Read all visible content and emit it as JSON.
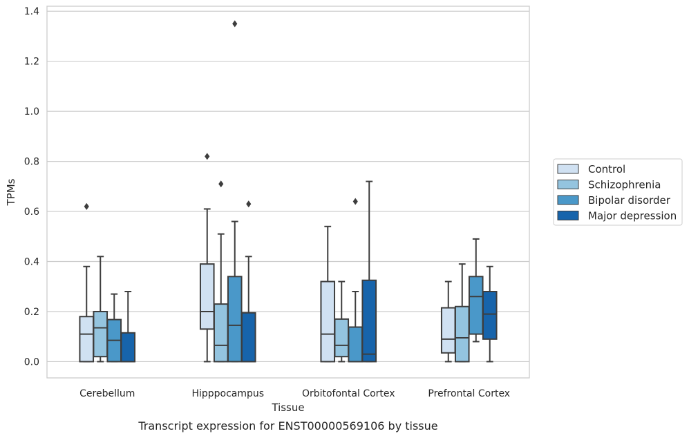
{
  "chart_data": {
    "type": "box",
    "xlabel": "Tissue",
    "ylabel": "TPMs",
    "caption": "Transcript expression for ENST00000569106 by tissue",
    "ylim": [
      -0.065,
      1.42
    ],
    "yticks": [
      "0.0",
      "0.2",
      "0.4",
      "0.6",
      "0.8",
      "1.0",
      "1.2",
      "1.4"
    ],
    "ytick_values": [
      0.0,
      0.2,
      0.4,
      0.6,
      0.8,
      1.0,
      1.2,
      1.4
    ],
    "grid": "horizontal",
    "legend_position": "right",
    "categories": [
      "Cerebellum",
      "Hipppocampus",
      "Orbitofontal Cortex",
      "Prefrontal Cortex"
    ],
    "series": [
      {
        "name": "Control",
        "color": "#d0e1f2",
        "boxes": [
          {
            "whislo": 0.0,
            "q1": 0.0,
            "med": 0.11,
            "q3": 0.18,
            "whishi": 0.38,
            "fliers": [
              0.62
            ]
          },
          {
            "whislo": 0.0,
            "q1": 0.13,
            "med": 0.2,
            "q3": 0.39,
            "whishi": 0.61,
            "fliers": [
              0.82
            ]
          },
          {
            "whislo": 0.0,
            "q1": 0.0,
            "med": 0.11,
            "q3": 0.32,
            "whishi": 0.54,
            "fliers": []
          },
          {
            "whislo": 0.0,
            "q1": 0.035,
            "med": 0.09,
            "q3": 0.215,
            "whishi": 0.32,
            "fliers": []
          }
        ]
      },
      {
        "name": "Schizophrenia",
        "color": "#94c4df",
        "boxes": [
          {
            "whislo": 0.0,
            "q1": 0.02,
            "med": 0.135,
            "q3": 0.2,
            "whishi": 0.42,
            "fliers": []
          },
          {
            "whislo": 0.0,
            "q1": 0.0,
            "med": 0.065,
            "q3": 0.23,
            "whishi": 0.51,
            "fliers": [
              0.71
            ]
          },
          {
            "whislo": 0.0,
            "q1": 0.02,
            "med": 0.065,
            "q3": 0.17,
            "whishi": 0.32,
            "fliers": []
          },
          {
            "whislo": 0.0,
            "q1": 0.0,
            "med": 0.095,
            "q3": 0.22,
            "whishi": 0.39,
            "fliers": []
          }
        ]
      },
      {
        "name": "Bipolar disorder",
        "color": "#4a98c9",
        "boxes": [
          {
            "whislo": 0.0,
            "q1": 0.0,
            "med": 0.085,
            "q3": 0.168,
            "whishi": 0.27,
            "fliers": []
          },
          {
            "whislo": 0.0,
            "q1": 0.0,
            "med": 0.145,
            "q3": 0.34,
            "whishi": 0.56,
            "fliers": [
              1.35
            ]
          },
          {
            "whislo": 0.0,
            "q1": 0.0,
            "med": 0.0,
            "q3": 0.138,
            "whishi": 0.28,
            "fliers": [
              0.64
            ]
          },
          {
            "whislo": 0.08,
            "q1": 0.11,
            "med": 0.26,
            "q3": 0.34,
            "whishi": 0.49,
            "fliers": []
          }
        ]
      },
      {
        "name": "Major depression",
        "color": "#1764ab",
        "boxes": [
          {
            "whislo": 0.0,
            "q1": 0.0,
            "med": 0.0,
            "q3": 0.115,
            "whishi": 0.28,
            "fliers": []
          },
          {
            "whislo": 0.0,
            "q1": 0.0,
            "med": 0.0,
            "q3": 0.195,
            "whishi": 0.42,
            "fliers": [
              0.63
            ]
          },
          {
            "whislo": 0.0,
            "q1": 0.0,
            "med": 0.03,
            "q3": 0.325,
            "whishi": 0.72,
            "fliers": []
          },
          {
            "whislo": 0.0,
            "q1": 0.09,
            "med": 0.19,
            "q3": 0.28,
            "whishi": 0.38,
            "fliers": []
          }
        ]
      }
    ]
  }
}
